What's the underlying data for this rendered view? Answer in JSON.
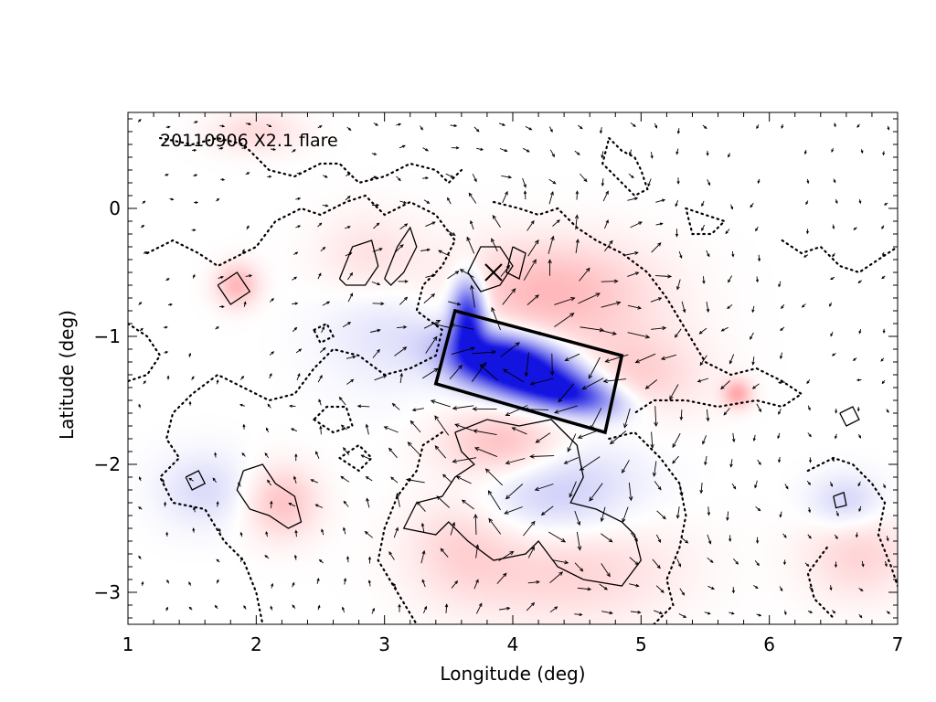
{
  "chart_data": {
    "type": "heatmap",
    "title": "",
    "annotation": "20110906 X2.1 flare",
    "xlabel": "Longitude (deg)",
    "ylabel": "Latitude (deg)",
    "xlim": [
      1,
      7
    ],
    "ylim": [
      -3.25,
      0.75
    ],
    "x_ticks": [
      1,
      2,
      3,
      4,
      5,
      6,
      7
    ],
    "y_ticks": [
      -3,
      -2,
      -1,
      0
    ],
    "x_tick_labels": [
      "1",
      "2",
      "3",
      "4",
      "5",
      "6",
      "7"
    ],
    "y_tick_labels": [
      "−3",
      "−2",
      "−1",
      "0"
    ],
    "grid": false,
    "legend": "none",
    "colors": {
      "positive": "#e8141e",
      "negative": "#1414e0",
      "contour": "#000000"
    },
    "blobs": [
      {
        "x": 4.05,
        "y": -1.25,
        "sx": 0.38,
        "sy": 0.16,
        "angle": -15,
        "amp": -1.0
      },
      {
        "x": 3.65,
        "y": -0.85,
        "sx": 0.09,
        "sy": 0.2,
        "angle": 0,
        "amp": -0.95
      },
      {
        "x": 4.45,
        "y": -1.45,
        "sx": 0.28,
        "sy": 0.1,
        "angle": -12,
        "amp": -0.7
      },
      {
        "x": 3.9,
        "y": -1.2,
        "sx": 0.25,
        "sy": 0.12,
        "angle": -10,
        "amp": -0.55
      },
      {
        "x": 4.3,
        "y": -2.2,
        "sx": 0.45,
        "sy": 0.3,
        "angle": 0,
        "amp": -0.25
      },
      {
        "x": 3.0,
        "y": -0.9,
        "sx": 0.35,
        "sy": 0.35,
        "angle": 0,
        "amp": -0.12
      },
      {
        "x": 6.6,
        "y": -2.3,
        "sx": 0.2,
        "sy": 0.15,
        "angle": 0,
        "amp": -0.2
      },
      {
        "x": 1.6,
        "y": -2.2,
        "sx": 0.25,
        "sy": 0.2,
        "angle": 0,
        "amp": -0.15
      },
      {
        "x": 4.3,
        "y": -0.65,
        "sx": 0.55,
        "sy": 0.28,
        "angle": 0,
        "amp": 0.3
      },
      {
        "x": 4.9,
        "y": -1.3,
        "sx": 0.4,
        "sy": 0.25,
        "angle": 0,
        "amp": 0.22
      },
      {
        "x": 3.95,
        "y": -1.85,
        "sx": 0.35,
        "sy": 0.2,
        "angle": 0,
        "amp": 0.32
      },
      {
        "x": 4.4,
        "y": -2.8,
        "sx": 0.6,
        "sy": 0.3,
        "angle": 0,
        "amp": 0.2
      },
      {
        "x": 3.6,
        "y": -2.6,
        "sx": 0.3,
        "sy": 0.3,
        "angle": 0,
        "amp": 0.15
      },
      {
        "x": 2.2,
        "y": -2.3,
        "sx": 0.2,
        "sy": 0.2,
        "angle": 0,
        "amp": 0.25
      },
      {
        "x": 1.85,
        "y": -0.6,
        "sx": 0.12,
        "sy": 0.12,
        "angle": 0,
        "amp": 0.3
      },
      {
        "x": 2.9,
        "y": -0.4,
        "sx": 0.3,
        "sy": 0.25,
        "angle": 0,
        "amp": 0.15
      },
      {
        "x": 5.75,
        "y": -1.45,
        "sx": 0.08,
        "sy": 0.08,
        "angle": 0,
        "amp": 0.35
      },
      {
        "x": 6.7,
        "y": -2.7,
        "sx": 0.3,
        "sy": 0.25,
        "angle": 0,
        "amp": 0.18
      },
      {
        "x": 2.0,
        "y": 0.6,
        "sx": 0.25,
        "sy": 0.12,
        "angle": 0,
        "amp": 0.15
      }
    ],
    "box": [
      [
        3.55,
        -0.8
      ],
      [
        4.85,
        -1.15
      ],
      [
        4.72,
        -1.75
      ],
      [
        3.4,
        -1.37
      ]
    ],
    "cross": {
      "x": 3.85,
      "y": -0.5
    },
    "solid_contours": [
      [
        [
          2.65,
          -0.55
        ],
        [
          2.75,
          -0.3
        ],
        [
          2.9,
          -0.25
        ],
        [
          2.95,
          -0.45
        ],
        [
          2.85,
          -0.6
        ],
        [
          2.7,
          -0.6
        ],
        [
          2.65,
          -0.55
        ]
      ],
      [
        [
          3.0,
          -0.55
        ],
        [
          3.1,
          -0.3
        ],
        [
          3.2,
          -0.15
        ],
        [
          3.25,
          -0.3
        ],
        [
          3.15,
          -0.5
        ],
        [
          3.05,
          -0.6
        ],
        [
          3.0,
          -0.55
        ]
      ],
      [
        [
          1.7,
          -0.6
        ],
        [
          1.85,
          -0.5
        ],
        [
          1.95,
          -0.65
        ],
        [
          1.8,
          -0.75
        ],
        [
          1.7,
          -0.6
        ]
      ],
      [
        [
          3.65,
          -0.5
        ],
        [
          3.75,
          -0.3
        ],
        [
          3.9,
          -0.3
        ],
        [
          4.0,
          -0.45
        ],
        [
          3.9,
          -0.6
        ],
        [
          3.75,
          -0.65
        ],
        [
          3.65,
          -0.5
        ]
      ],
      [
        [
          4.0,
          -0.3
        ],
        [
          4.1,
          -0.35
        ],
        [
          4.05,
          -0.55
        ],
        [
          3.95,
          -0.5
        ],
        [
          4.0,
          -0.3
        ]
      ],
      [
        [
          3.55,
          -1.75
        ],
        [
          3.8,
          -1.65
        ],
        [
          4.05,
          -1.7
        ],
        [
          4.3,
          -1.65
        ],
        [
          4.5,
          -1.85
        ],
        [
          4.55,
          -2.1
        ],
        [
          4.45,
          -2.3
        ],
        [
          4.65,
          -2.35
        ],
        [
          4.85,
          -2.45
        ],
        [
          4.95,
          -2.55
        ],
        [
          5.0,
          -2.75
        ],
        [
          4.85,
          -2.95
        ],
        [
          4.55,
          -2.9
        ],
        [
          4.35,
          -2.8
        ],
        [
          4.2,
          -2.6
        ],
        [
          4.1,
          -2.7
        ],
        [
          3.85,
          -2.75
        ],
        [
          3.65,
          -2.6
        ],
        [
          3.5,
          -2.45
        ],
        [
          3.4,
          -2.55
        ],
        [
          3.15,
          -2.5
        ],
        [
          3.25,
          -2.3
        ],
        [
          3.45,
          -2.25
        ],
        [
          3.55,
          -2.1
        ],
        [
          3.7,
          -2.0
        ],
        [
          3.6,
          -1.9
        ],
        [
          3.55,
          -1.75
        ]
      ],
      [
        [
          1.9,
          -2.05
        ],
        [
          2.05,
          -2.0
        ],
        [
          2.15,
          -2.15
        ],
        [
          2.3,
          -2.25
        ],
        [
          2.35,
          -2.45
        ],
        [
          2.25,
          -2.5
        ],
        [
          2.1,
          -2.4
        ],
        [
          1.95,
          -2.35
        ],
        [
          1.85,
          -2.2
        ],
        [
          1.9,
          -2.05
        ]
      ],
      [
        [
          1.45,
          -2.1
        ],
        [
          1.55,
          -2.05
        ],
        [
          1.6,
          -2.15
        ],
        [
          1.5,
          -2.2
        ],
        [
          1.45,
          -2.1
        ]
      ],
      [
        [
          6.55,
          -1.6
        ],
        [
          6.65,
          -1.55
        ],
        [
          6.7,
          -1.65
        ],
        [
          6.6,
          -1.7
        ],
        [
          6.55,
          -1.6
        ]
      ],
      [
        [
          6.5,
          -2.25
        ],
        [
          6.58,
          -2.22
        ],
        [
          6.6,
          -2.32
        ],
        [
          6.52,
          -2.34
        ],
        [
          6.5,
          -2.25
        ]
      ]
    ],
    "dotted_contours": [
      [
        [
          1.25,
          0.55
        ],
        [
          1.5,
          0.5
        ],
        [
          1.7,
          0.55
        ],
        [
          1.9,
          0.5
        ],
        [
          2.1,
          0.3
        ],
        [
          2.3,
          0.25
        ],
        [
          2.5,
          0.35
        ],
        [
          2.65,
          0.35
        ],
        [
          2.8,
          0.2
        ],
        [
          3.0,
          0.25
        ],
        [
          3.2,
          0.35
        ],
        [
          3.4,
          0.3
        ],
        [
          3.5,
          0.2
        ],
        [
          3.6,
          0.3
        ]
      ],
      [
        [
          1.15,
          -0.35
        ],
        [
          1.35,
          -0.25
        ],
        [
          1.55,
          -0.35
        ],
        [
          1.7,
          -0.45
        ],
        [
          1.8,
          -0.4
        ],
        [
          2.0,
          -0.3
        ],
        [
          2.15,
          -0.1
        ],
        [
          2.35,
          0.0
        ],
        [
          2.5,
          -0.05
        ],
        [
          2.7,
          0.05
        ],
        [
          2.85,
          0.1
        ],
        [
          3.0,
          -0.05
        ],
        [
          3.2,
          0.05
        ],
        [
          3.4,
          -0.05
        ],
        [
          3.55,
          -0.25
        ],
        [
          3.45,
          -0.45
        ],
        [
          3.3,
          -0.6
        ],
        [
          3.25,
          -0.8
        ],
        [
          3.45,
          -0.95
        ],
        [
          3.4,
          -1.15
        ],
        [
          3.2,
          -1.25
        ],
        [
          3.0,
          -1.3
        ],
        [
          2.8,
          -1.15
        ],
        [
          2.6,
          -1.1
        ],
        [
          2.45,
          -1.25
        ],
        [
          2.3,
          -1.45
        ],
        [
          2.1,
          -1.5
        ],
        [
          1.9,
          -1.4
        ],
        [
          1.7,
          -1.3
        ],
        [
          1.5,
          -1.45
        ],
        [
          1.35,
          -1.6
        ],
        [
          1.3,
          -1.8
        ],
        [
          1.4,
          -1.95
        ],
        [
          1.25,
          -2.1
        ],
        [
          1.35,
          -2.3
        ],
        [
          1.6,
          -2.35
        ],
        [
          1.75,
          -2.6
        ],
        [
          1.9,
          -2.75
        ],
        [
          2.0,
          -3.0
        ],
        [
          2.05,
          -3.25
        ]
      ],
      [
        [
          3.45,
          -1.75
        ],
        [
          3.3,
          -1.85
        ],
        [
          3.25,
          -2.05
        ],
        [
          3.1,
          -2.25
        ],
        [
          3.0,
          -2.5
        ],
        [
          2.95,
          -2.75
        ],
        [
          3.1,
          -3.0
        ],
        [
          3.25,
          -3.25
        ]
      ],
      [
        [
          4.75,
          -1.8
        ],
        [
          4.95,
          -1.75
        ],
        [
          5.15,
          -1.95
        ],
        [
          5.3,
          -2.15
        ],
        [
          5.35,
          -2.4
        ],
        [
          5.3,
          -2.65
        ],
        [
          5.2,
          -2.9
        ],
        [
          5.25,
          -3.1
        ],
        [
          5.1,
          -3.25
        ]
      ],
      [
        [
          3.85,
          0.05
        ],
        [
          4.05,
          0.0
        ],
        [
          4.2,
          -0.05
        ],
        [
          4.35,
          0.0
        ],
        [
          4.5,
          -0.15
        ],
        [
          4.65,
          -0.25
        ],
        [
          4.85,
          -0.35
        ],
        [
          5.05,
          -0.5
        ],
        [
          5.2,
          -0.7
        ],
        [
          5.35,
          -0.95
        ],
        [
          5.5,
          -1.2
        ],
        [
          5.7,
          -1.3
        ],
        [
          5.9,
          -1.25
        ],
        [
          6.1,
          -1.35
        ],
        [
          6.25,
          -1.45
        ],
        [
          6.1,
          -1.55
        ],
        [
          5.9,
          -1.5
        ],
        [
          5.6,
          -1.55
        ],
        [
          5.35,
          -1.5
        ],
        [
          5.1,
          -1.5
        ],
        [
          4.95,
          -1.6
        ]
      ],
      [
        [
          4.75,
          0.55
        ],
        [
          4.85,
          0.45
        ],
        [
          4.95,
          0.4
        ],
        [
          5.0,
          0.3
        ],
        [
          5.05,
          0.15
        ],
        [
          4.95,
          0.1
        ],
        [
          4.8,
          0.25
        ],
        [
          4.7,
          0.35
        ],
        [
          4.75,
          0.55
        ]
      ],
      [
        [
          6.1,
          -0.25
        ],
        [
          6.25,
          -0.35
        ],
        [
          6.4,
          -0.3
        ],
        [
          6.55,
          -0.45
        ],
        [
          6.7,
          -0.5
        ],
        [
          6.85,
          -0.4
        ],
        [
          7.0,
          -0.3
        ]
      ],
      [
        [
          5.35,
          0.0
        ],
        [
          5.5,
          -0.05
        ],
        [
          5.65,
          -0.1
        ],
        [
          5.55,
          -0.2
        ],
        [
          5.4,
          -0.2
        ],
        [
          5.35,
          0.0
        ]
      ],
      [
        [
          6.3,
          -2.05
        ],
        [
          6.5,
          -1.95
        ],
        [
          6.65,
          -2.0
        ],
        [
          6.8,
          -2.15
        ],
        [
          6.9,
          -2.3
        ],
        [
          6.85,
          -2.55
        ],
        [
          6.95,
          -2.8
        ],
        [
          7.0,
          -2.95
        ]
      ],
      [
        [
          6.45,
          -2.65
        ],
        [
          6.3,
          -2.85
        ],
        [
          6.35,
          -3.05
        ],
        [
          6.5,
          -3.2
        ]
      ],
      [
        [
          2.45,
          -1.65
        ],
        [
          2.6,
          -1.75
        ],
        [
          2.75,
          -1.7
        ],
        [
          2.7,
          -1.55
        ],
        [
          2.55,
          -1.55
        ],
        [
          2.45,
          -1.65
        ]
      ],
      [
        [
          2.65,
          -1.95
        ],
        [
          2.8,
          -2.05
        ],
        [
          2.9,
          -1.95
        ],
        [
          2.8,
          -1.85
        ],
        [
          2.65,
          -1.95
        ]
      ],
      [
        [
          2.45,
          -0.95
        ],
        [
          2.55,
          -0.9
        ],
        [
          2.6,
          -1.0
        ],
        [
          2.5,
          -1.05
        ],
        [
          2.45,
          -0.95
        ]
      ],
      [
        [
          1.0,
          -0.9
        ],
        [
          1.15,
          -1.0
        ],
        [
          1.25,
          -1.15
        ],
        [
          1.15,
          -1.3
        ],
        [
          1.0,
          -1.35
        ]
      ]
    ]
  }
}
